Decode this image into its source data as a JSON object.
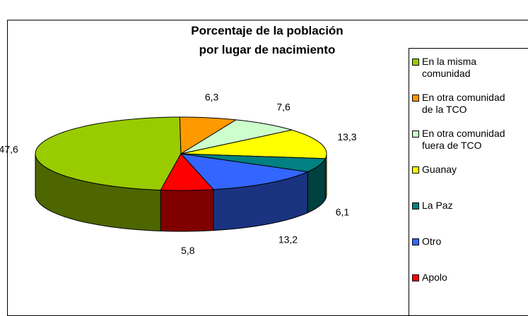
{
  "chart_data": {
    "type": "pie3d",
    "title": "Porcentaje de la población\npor lugar de nacimiento",
    "categories": [
      "En la misma comunidad",
      "En otra comunidad de la TCO",
      "En otra comunidad fuera de TCO",
      "Guanay",
      "La Paz",
      "Otro",
      "Apolo"
    ],
    "values": [
      47.6,
      6.3,
      7.6,
      13.3,
      6.1,
      13.2,
      5.8
    ],
    "value_labels": [
      "47,6",
      "6,3",
      "7,6",
      "13,3",
      "6,1",
      "13,2",
      "5,8"
    ],
    "colors": [
      "#99cc00",
      "#ff9900",
      "#ccffcc",
      "#ffff00",
      "#008080",
      "#3366ff",
      "#ff0000"
    ],
    "legend": "right"
  }
}
